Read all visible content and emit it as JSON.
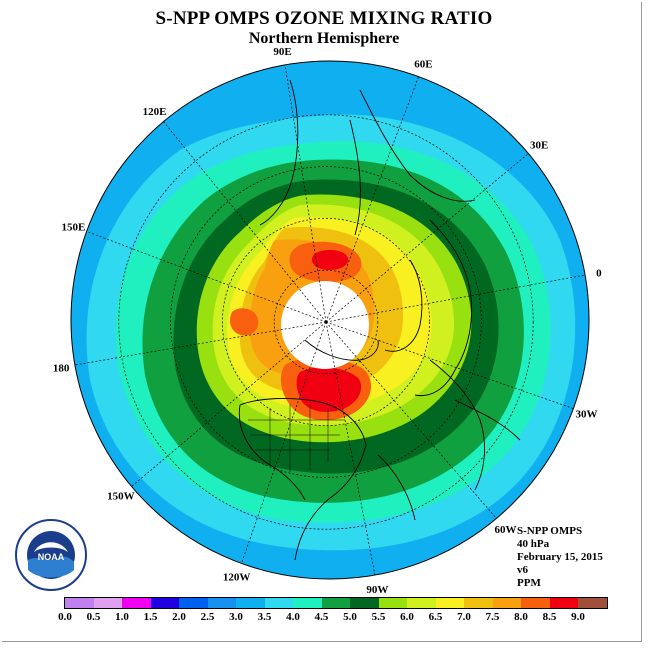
{
  "title": "S-NPP OMPS OZONE MIXING RATIO",
  "subtitle": "Northern Hemisphere",
  "longitude_labels": [
    "0",
    "30E",
    "60E",
    "90E",
    "120E",
    "150E",
    "180",
    "150W",
    "120W",
    "90W",
    "60W",
    "30W"
  ],
  "info": {
    "instrument": "S-NPP OMPS",
    "level": "40 hPa",
    "date": "February 15, 2015",
    "version": "v6",
    "units": "PPM"
  },
  "logo_text": "NOAA",
  "colorbar": {
    "ticks": [
      "0.0",
      "0.5",
      "1.0",
      "1.5",
      "2.0",
      "2.5",
      "3.0",
      "3.5",
      "4.0",
      "4.5",
      "5.0",
      "5.5",
      "6.0",
      "6.5",
      "7.0",
      "7.5",
      "8.0",
      "8.5",
      "9.0"
    ],
    "colors": [
      "#c080f0",
      "#e0a0f0",
      "#f000f0",
      "#2000e0",
      "#0060f0",
      "#1890f0",
      "#10b0f0",
      "#30d8f0",
      "#20f0c0",
      "#10a040",
      "#006820",
      "#98e010",
      "#d0f020",
      "#f8f020",
      "#f0c010",
      "#f8a010",
      "#f86010",
      "#f00010",
      "#a05038"
    ]
  },
  "contour_colors": {
    "c3": "#10b0f0",
    "c35": "#30d8f0",
    "c4": "#20f0c0",
    "c45": "#10a040",
    "c5": "#006820",
    "c55": "#98e010",
    "c6": "#d0f020",
    "c65": "#f8f020",
    "c7": "#f0c010",
    "c75": "#f8a010",
    "c8": "#f86010",
    "c85": "#f00010"
  }
}
